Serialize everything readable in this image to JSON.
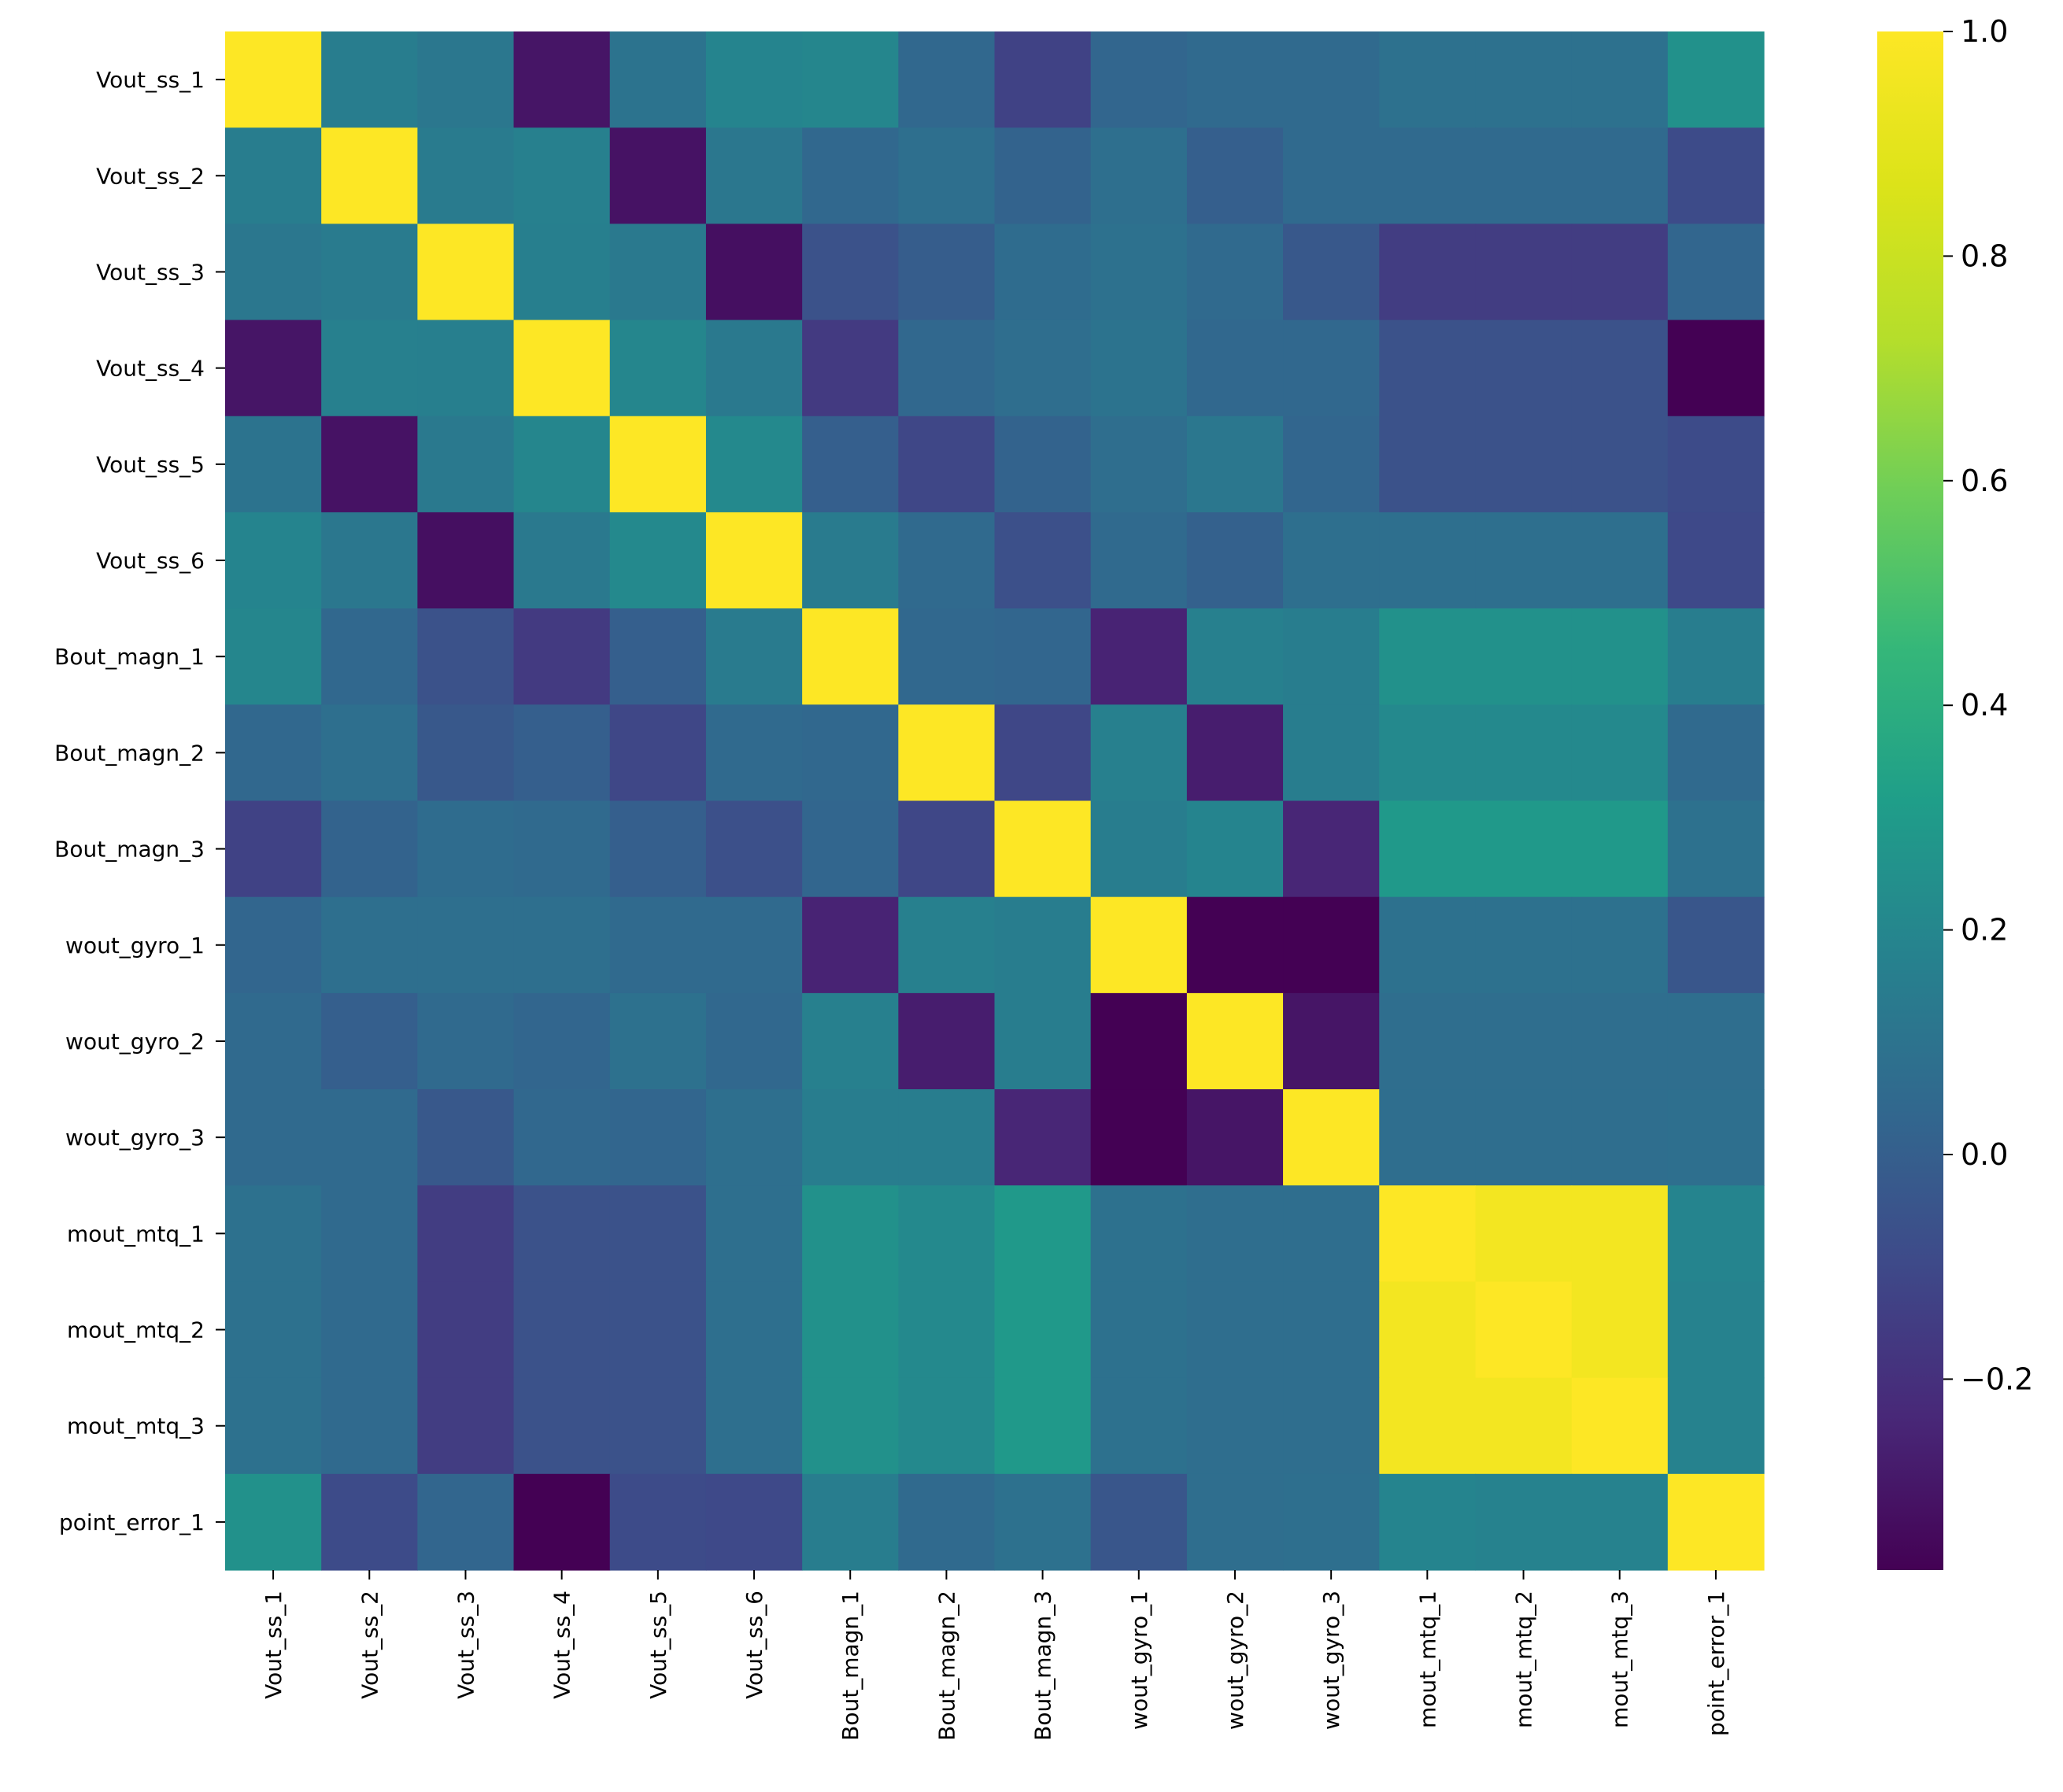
{
  "chart_data": {
    "type": "heatmap",
    "title": "",
    "xlabel": "",
    "ylabel": "",
    "colormap": "viridis",
    "vmin": -0.37,
    "vmax": 1.0,
    "labels": [
      "Vout_ss_1",
      "Vout_ss_2",
      "Vout_ss_3",
      "Vout_ss_4",
      "Vout_ss_5",
      "Vout_ss_6",
      "Bout_magn_1",
      "Bout_magn_2",
      "Bout_magn_3",
      "wout_gyro_1",
      "wout_gyro_2",
      "wout_gyro_3",
      "mout_mtq_1",
      "mout_mtq_2",
      "mout_mtq_3",
      "point_error_1"
    ],
    "colorbar_ticks": [
      {
        "value": 1.0,
        "label": "1.0"
      },
      {
        "value": 0.8,
        "label": "0.8"
      },
      {
        "value": 0.6,
        "label": "0.6"
      },
      {
        "value": 0.4,
        "label": "0.4"
      },
      {
        "value": 0.2,
        "label": "0.2"
      },
      {
        "value": 0.0,
        "label": "0.0"
      },
      {
        "value": -0.2,
        "label": "−0.2"
      }
    ],
    "matrix": [
      [
        1.0,
        0.15,
        0.12,
        -0.3,
        0.1,
        0.19,
        0.2,
        0.04,
        -0.13,
        0.03,
        0.05,
        0.05,
        0.09,
        0.09,
        0.09,
        0.25
      ],
      [
        0.15,
        1.0,
        0.14,
        0.17,
        -0.31,
        0.12,
        0.04,
        0.08,
        0.02,
        0.08,
        0.0,
        0.05,
        0.05,
        0.05,
        0.05,
        -0.09
      ],
      [
        0.12,
        0.14,
        1.0,
        0.16,
        0.13,
        -0.32,
        -0.06,
        -0.01,
        0.06,
        0.09,
        0.05,
        -0.03,
        -0.15,
        -0.15,
        -0.15,
        0.03
      ],
      [
        -0.3,
        0.17,
        0.16,
        1.0,
        0.2,
        0.13,
        -0.16,
        0.04,
        0.07,
        0.1,
        0.04,
        0.04,
        -0.06,
        -0.06,
        -0.06,
        -0.37
      ],
      [
        0.1,
        -0.31,
        0.13,
        0.2,
        1.0,
        0.21,
        0.0,
        -0.11,
        0.02,
        0.07,
        0.12,
        0.03,
        -0.06,
        -0.06,
        -0.06,
        -0.09
      ],
      [
        0.19,
        0.12,
        -0.32,
        0.13,
        0.21,
        1.0,
        0.14,
        0.05,
        -0.07,
        0.05,
        0.01,
        0.08,
        0.08,
        0.08,
        0.08,
        -0.1
      ],
      [
        0.2,
        0.04,
        -0.06,
        -0.16,
        0.0,
        0.14,
        1.0,
        0.04,
        0.03,
        -0.25,
        0.17,
        0.15,
        0.25,
        0.25,
        0.25,
        0.15
      ],
      [
        0.04,
        0.08,
        -0.03,
        0.0,
        -0.11,
        0.05,
        0.04,
        1.0,
        -0.11,
        0.17,
        -0.27,
        0.15,
        0.21,
        0.21,
        0.21,
        0.05
      ],
      [
        -0.13,
        0.02,
        0.06,
        0.05,
        0.0,
        -0.07,
        0.03,
        -0.11,
        1.0,
        0.15,
        0.19,
        -0.24,
        0.29,
        0.29,
        0.29,
        0.09
      ],
      [
        0.03,
        0.08,
        0.08,
        0.08,
        0.05,
        0.05,
        -0.25,
        0.17,
        0.15,
        1.0,
        -0.37,
        -0.37,
        0.09,
        0.09,
        0.09,
        -0.04
      ],
      [
        0.05,
        0.0,
        0.05,
        0.03,
        0.09,
        0.04,
        0.17,
        -0.27,
        0.15,
        -0.37,
        1.0,
        -0.3,
        0.07,
        0.07,
        0.07,
        0.07
      ],
      [
        0.05,
        0.05,
        -0.03,
        0.04,
        0.03,
        0.08,
        0.15,
        0.15,
        -0.24,
        -0.37,
        -0.3,
        1.0,
        0.07,
        0.07,
        0.07,
        0.08
      ],
      [
        0.09,
        0.05,
        -0.15,
        -0.06,
        -0.06,
        0.08,
        0.25,
        0.21,
        0.29,
        0.09,
        0.07,
        0.07,
        1.0,
        0.96,
        0.96,
        0.19
      ],
      [
        0.09,
        0.05,
        -0.15,
        -0.06,
        -0.06,
        0.08,
        0.25,
        0.21,
        0.29,
        0.09,
        0.07,
        0.07,
        0.96,
        1.0,
        0.96,
        0.18
      ],
      [
        0.09,
        0.05,
        -0.15,
        -0.06,
        -0.06,
        0.08,
        0.25,
        0.21,
        0.29,
        0.09,
        0.07,
        0.07,
        0.96,
        0.96,
        1.0,
        0.18
      ],
      [
        0.25,
        -0.09,
        0.03,
        -0.37,
        -0.09,
        -0.1,
        0.15,
        0.05,
        0.09,
        -0.04,
        0.07,
        0.08,
        0.19,
        0.18,
        0.18,
        1.0
      ]
    ],
    "legend": "colorbar-right",
    "grid": false
  }
}
